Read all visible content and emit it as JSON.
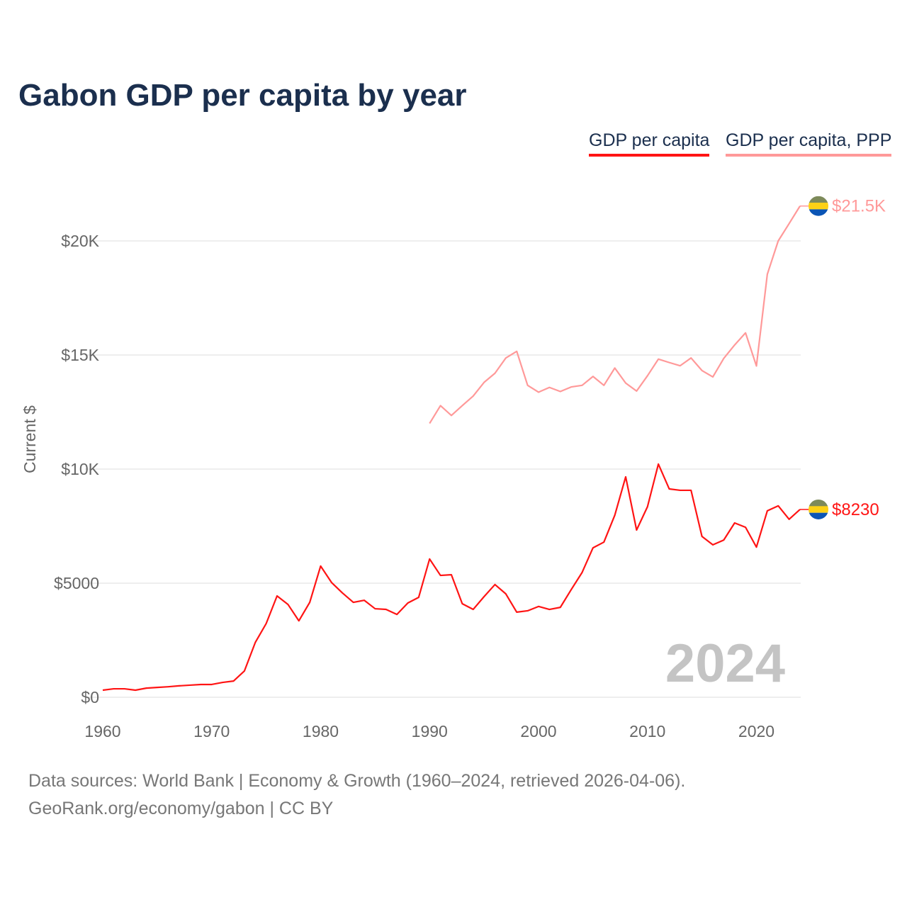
{
  "title": "Gabon GDP per capita by year",
  "legend": [
    "GDP per capita",
    "GDP per capita, PPP"
  ],
  "footer": {
    "line1": "Data sources: World Bank | Economy & Growth (1960–2024, retrieved 2026-04-06).",
    "line2": "GeoRank.org/economy/gabon | CC BY"
  },
  "watermark_year": "2024",
  "chart_data": {
    "type": "line",
    "title": "Gabon GDP per capita by year",
    "xlabel": "",
    "ylabel": "Current $",
    "xlim": [
      1960,
      2024
    ],
    "ylim": [
      0,
      22000
    ],
    "grid": true,
    "legend_position": "top-right",
    "x_ticks": [
      1960,
      1970,
      1980,
      1990,
      2000,
      2010,
      2020
    ],
    "x_tick_labels": [
      "1960",
      "1970",
      "1980",
      "1990",
      "2000",
      "2010",
      "2020"
    ],
    "y_ticks": [
      0,
      5000,
      10000,
      15000,
      20000
    ],
    "y_tick_labels": [
      "$0",
      "$5000",
      "$10K",
      "$15K",
      "$20K"
    ],
    "series": [
      {
        "name": "GDP per capita",
        "color": "#ff1414",
        "end_label": "$8230",
        "start_year": 1960,
        "values": [
          310,
          370,
          370,
          310,
          400,
          430,
          460,
          500,
          530,
          560,
          560,
          650,
          710,
          1150,
          2400,
          3230,
          4440,
          4070,
          3350,
          4160,
          5750,
          5030,
          4570,
          4160,
          4250,
          3880,
          3850,
          3630,
          4130,
          4380,
          6060,
          5340,
          5370,
          4100,
          3850,
          4410,
          4940,
          4530,
          3730,
          3790,
          3980,
          3850,
          3940,
          4720,
          5470,
          6550,
          6800,
          7980,
          9660,
          7330,
          8350,
          10220,
          9130,
          9070,
          9070,
          7050,
          6680,
          6890,
          7640,
          7450,
          6580,
          8170,
          8390,
          7800,
          8230
        ]
      },
      {
        "name": "GDP per capita, PPP",
        "color": "#ff9999",
        "end_label": "$21.5K",
        "start_year": 1990,
        "values": [
          12000,
          12780,
          12350,
          12780,
          13200,
          13800,
          14200,
          14870,
          15160,
          13670,
          13370,
          13580,
          13400,
          13600,
          13670,
          14060,
          13670,
          14430,
          13770,
          13420,
          14090,
          14820,
          14670,
          14530,
          14870,
          14320,
          14040,
          14850,
          15440,
          15970,
          14520,
          18540,
          20000,
          20760,
          21530
        ]
      }
    ]
  }
}
